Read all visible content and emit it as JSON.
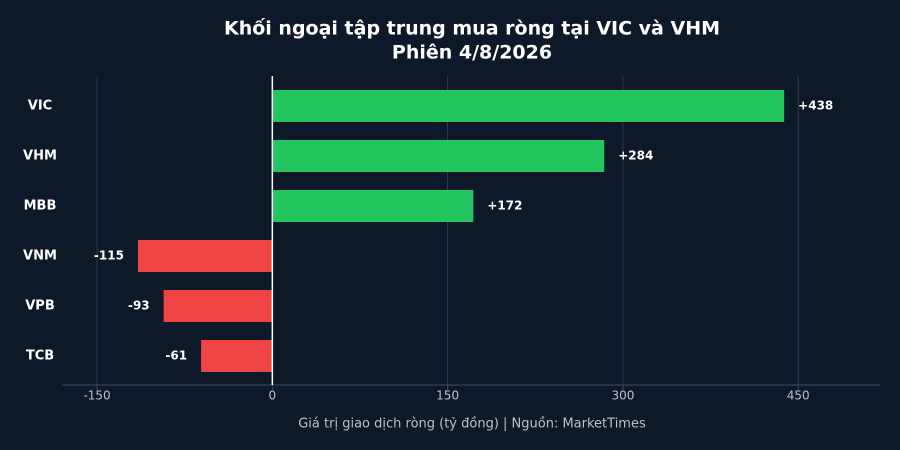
{
  "chart_data": {
    "type": "hbar",
    "title": "Khối ngoại tập trung mua ròng tại VIC và VHM",
    "subtitle": "Phiên 4/8/2026",
    "x_label": "Giá trị giao dịch ròng (tỷ đồng)  |  Nguồn: MarketTimes",
    "categories": [
      "VIC",
      "VHM",
      "MBB",
      "VNM",
      "VPB",
      "TCB"
    ],
    "values": [
      438,
      284,
      172,
      -115,
      -93,
      -61
    ],
    "value_labels": [
      "+438",
      "+284",
      "+172",
      "-115",
      "-93",
      "-61"
    ],
    "colors": [
      "#22c55e",
      "#22c55e",
      "#22c55e",
      "#ef4444",
      "#ef4444",
      "#ef4444"
    ],
    "xlim": [
      -180,
      520
    ],
    "xticks": [
      -150,
      0,
      150,
      300,
      450
    ],
    "grid": true
  }
}
